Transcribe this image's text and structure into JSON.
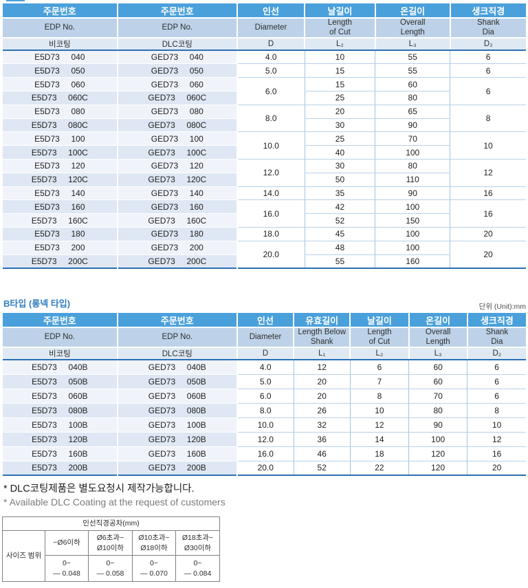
{
  "table_a": {
    "header": [
      {
        "cls": "hk",
        "cells": [
          "주문번호",
          "주문번호",
          "인선",
          "날길이",
          "온길이",
          "생크직경"
        ]
      },
      {
        "cls": "he",
        "cells": [
          "EDP No.",
          "EDP No.",
          "Diameter",
          "Length\nof Cut",
          "Overall\nLength",
          "Shank\nDia"
        ]
      },
      {
        "cls": "hs",
        "cells": [
          "비코팅",
          "DLC코팅",
          "D",
          "L₂",
          "L₃",
          "D₂"
        ]
      }
    ],
    "col_widths": [
      "21.9%",
      "22.9%",
      "12.9%",
      "13.5%",
      "14.3%",
      "14.5%"
    ],
    "rows": [
      [
        "E5D73     040",
        "GED73     040",
        "4.0",
        "10",
        "55",
        "6"
      ],
      [
        "E5D73     050",
        "GED73     050",
        "5.0",
        "15",
        "55",
        "6"
      ],
      [
        "E5D73     060",
        "GED73     060",
        {
          "t": "6.0",
          "rs": 2
        },
        "15",
        "60",
        {
          "t": "6",
          "rs": 2
        }
      ],
      [
        "E5D73     060C",
        "GED73     060C",
        "25",
        "80"
      ],
      [
        "E5D73     080",
        "GED73     080",
        {
          "t": "8.0",
          "rs": 2
        },
        "20",
        "65",
        {
          "t": "8",
          "rs": 2
        }
      ],
      [
        "E5D73     080C",
        "GED73     080C",
        "30",
        "90"
      ],
      [
        "E5D73     100",
        "GED73     100",
        {
          "t": "10.0",
          "rs": 2
        },
        "25",
        "70",
        {
          "t": "10",
          "rs": 2
        }
      ],
      [
        "E5D73     100C",
        "GED73     100C",
        "40",
        "100"
      ],
      [
        "E5D73     120",
        "GED73     120",
        {
          "t": "12.0",
          "rs": 2
        },
        "30",
        "80",
        {
          "t": "12",
          "rs": 2
        }
      ],
      [
        "E5D73     120C",
        "GED73     120C",
        "50",
        "110"
      ],
      [
        "E5D73     140",
        "GED73     140",
        "14.0",
        "35",
        "90",
        "16"
      ],
      [
        "E5D73     160",
        "GED73     160",
        {
          "t": "16.0",
          "rs": 2
        },
        "42",
        "100",
        {
          "t": "16",
          "rs": 2
        }
      ],
      [
        "E5D73     160C",
        "GED73     160C",
        "52",
        "150"
      ],
      [
        "E5D73     180",
        "GED73     180",
        "18.0",
        "45",
        "100",
        "20"
      ],
      [
        "E5D73     200",
        "GED73     200",
        {
          "t": "20.0",
          "rs": 2
        },
        "48",
        "100",
        {
          "t": "20",
          "rs": 2
        }
      ],
      [
        "E5D73     200C",
        "GED73     200C",
        "55",
        "160"
      ]
    ]
  },
  "section_b": {
    "label": "B타입 (롱넥 타입)",
    "unit": "단위 (Unit):mm"
  },
  "table_b": {
    "header": [
      {
        "cls": "hk",
        "cells": [
          "주문번호",
          "주문번호",
          "인선",
          "유효길이",
          "날길이",
          "온길이",
          "생크직경"
        ]
      },
      {
        "cls": "he",
        "cells": [
          "EDP No.",
          "EDP No.",
          "Diameter",
          "Length Below\nShank",
          "Length\nof Cut",
          "Overall\nLength",
          "Shank\nDia"
        ]
      },
      {
        "cls": "hs",
        "cells": [
          "비코팅",
          "DLC코팅",
          "D",
          "L₁",
          "L₂",
          "L₃",
          "D₂"
        ]
      }
    ],
    "col_widths": [
      "21.9%",
      "22.9%",
      "10.8%",
      "10.8%",
      "11.2%",
      "11.2%",
      "11.2%"
    ],
    "rows": [
      [
        "E5D73     040B",
        "GED73     040B",
        "4.0",
        "12",
        "6",
        "60",
        "6"
      ],
      [
        "E5D73     050B",
        "GED73     050B",
        "5.0",
        "20",
        "7",
        "60",
        "6"
      ],
      [
        "E5D73     060B",
        "GED73     060B",
        "6.0",
        "20",
        "8",
        "70",
        "6"
      ],
      [
        "E5D73     080B",
        "GED73     080B",
        "8.0",
        "26",
        "10",
        "80",
        "8"
      ],
      [
        "E5D73     100B",
        "GED73     100B",
        "10.0",
        "32",
        "12",
        "90",
        "10"
      ],
      [
        "E5D73     120B",
        "GED73     120B",
        "12.0",
        "36",
        "14",
        "100",
        "12"
      ],
      [
        "E5D73     160B",
        "GED73     160B",
        "16.0",
        "46",
        "18",
        "120",
        "16"
      ],
      [
        "E5D73     200B",
        "GED73     200B",
        "20.0",
        "52",
        "22",
        "120",
        "20"
      ]
    ]
  },
  "footnotes": {
    "kr": "* DLC코팅제품은 별도요청시 제작가능합니다.",
    "en": "* Available DLC Coating at the request of customers"
  },
  "tolerance": {
    "title": "인선직경공차(mm)",
    "row_label": "사이즈 범위",
    "headers": [
      "~Ø6이하",
      "Ø6초과~\nØ10이하",
      "Ø10초과~\nØ18이하",
      "Ø18초과~\nØ30이하"
    ],
    "values": [
      "0~\n— 0.048",
      "0~\n— 0.058",
      "0~\n— 0.070",
      "0~\n— 0.084"
    ]
  }
}
